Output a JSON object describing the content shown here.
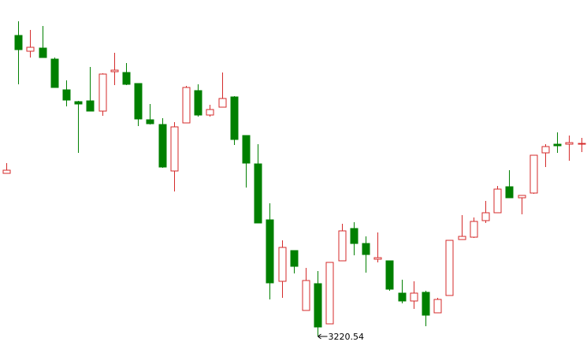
{
  "chart_data": {
    "type": "candlestick",
    "annotation": "3220.54",
    "up_color": "#d42a2a",
    "down_color": "#008000",
    "open": [
      3427.54,
      3602.54,
      3582.54,
      3586.54,
      3572.54,
      3533.54,
      3518.54,
      3519.54,
      3506.54,
      3556.54,
      3555.54,
      3541.54,
      3495.54,
      3489.54,
      3430.54,
      3491.54,
      3532.54,
      3501.54,
      3511.54,
      3524.54,
      3475.54,
      3439.54,
      3368.54,
      3290.54,
      3329.54,
      3253.54,
      3287.54,
      3236.54,
      3316.54,
      3357.54,
      3338.54,
      3318.54,
      3316.54,
      3275.54,
      3265.54,
      3276.54,
      3250.54,
      3272.54,
      3343.54,
      3346.54,
      3367.54,
      3377.54,
      3410.54,
      3396.54,
      3402.54,
      3453.54,
      3464.54,
      3464.54,
      3465.54
    ],
    "high": [
      3440.54,
      3620.54,
      3609.54,
      3614.54,
      3574.54,
      3545.54,
      3519.54,
      3562.54,
      3554.54,
      3580.54,
      3567.54,
      3541.54,
      3515.54,
      3497.54,
      3492.54,
      3538.54,
      3540.54,
      3514.54,
      3555.54,
      3525.54,
      3475.54,
      3464.54,
      3389.54,
      3342.54,
      3329.54,
      3307.54,
      3303.54,
      3314.54,
      3363.54,
      3365.54,
      3347.54,
      3352.54,
      3316.54,
      3292.54,
      3290.54,
      3278.54,
      3269.54,
      3342.54,
      3374.54,
      3371.54,
      3392.54,
      3411.54,
      3431.54,
      3399.54,
      3450.54,
      3464.54,
      3479.54,
      3475.54,
      3472.54
    ],
    "low": [
      3427.54,
      3540.54,
      3574.54,
      3574.54,
      3536.54,
      3512.54,
      3453.54,
      3506.54,
      3500.54,
      3539.54,
      3539.54,
      3487.54,
      3489.54,
      3434.54,
      3404.54,
      3491.54,
      3499.54,
      3499.54,
      3511.54,
      3463.54,
      3409.54,
      3364.54,
      3267.54,
      3269.54,
      3300.54,
      3253.54,
      3220.54,
      3236.54,
      3316.54,
      3323.54,
      3301.54,
      3314.54,
      3278.54,
      3262.54,
      3255.54,
      3233.54,
      3250.54,
      3272.54,
      3343.54,
      3345.54,
      3364.54,
      3377.54,
      3396.54,
      3375.54,
      3401.54,
      3435.54,
      3453.54,
      3443.54,
      3454.54
    ],
    "close": [
      3431.54,
      3584.54,
      3587.54,
      3574.54,
      3536.54,
      3520.54,
      3515.54,
      3506.54,
      3553.54,
      3558.54,
      3540.54,
      3496.54,
      3490.54,
      3435.54,
      3486.54,
      3536.54,
      3501.54,
      3508.54,
      3522.54,
      3470.54,
      3440.54,
      3364.54,
      3288.54,
      3333.54,
      3309.54,
      3291.54,
      3232.54,
      3314.54,
      3354.54,
      3338.54,
      3324.54,
      3320.54,
      3280.54,
      3265.54,
      3275.54,
      3247.54,
      3267.54,
      3342.54,
      3347.54,
      3366.54,
      3377.54,
      3407.54,
      3396.54,
      3399.54,
      3450.54,
      3461.54,
      3462.54,
      3466.54,
      3465.54
    ]
  }
}
